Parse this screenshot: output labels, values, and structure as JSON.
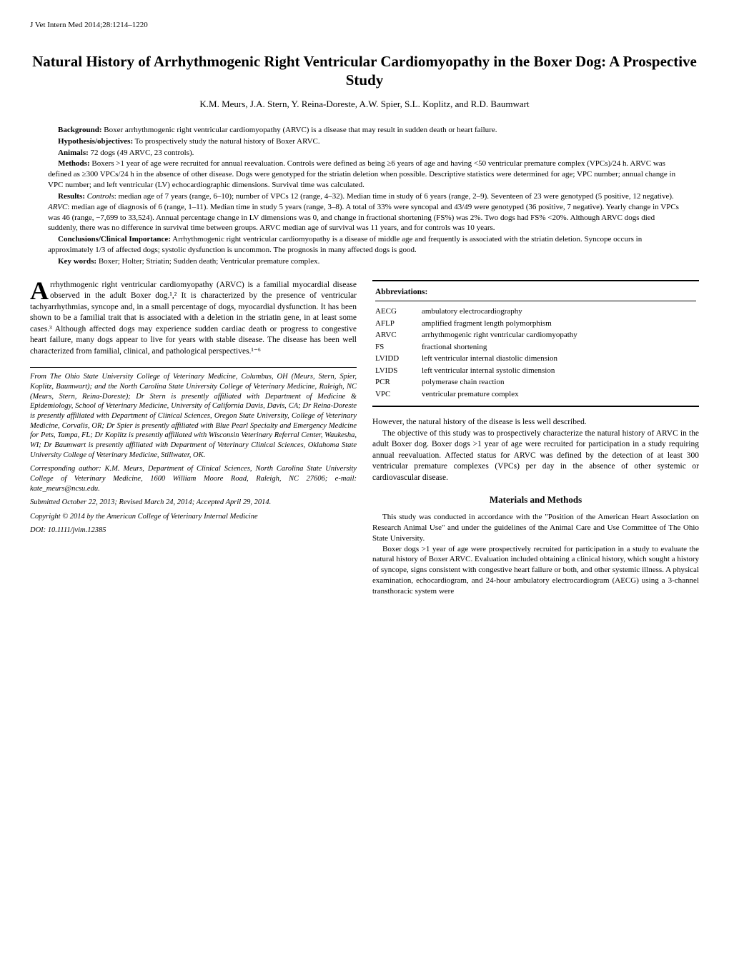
{
  "running_head": "J Vet Intern Med 2014;28:1214–1220",
  "title": "Natural History of Arrhythmogenic Right Ventricular Cardiomyopathy in the Boxer Dog: A Prospective Study",
  "authors": "K.M. Meurs, J.A. Stern, Y. Reina-Doreste, A.W. Spier, S.L. Koplitz, and R.D. Baumwart",
  "abstract": {
    "background_label": "Background:",
    "background": " Boxer arrhythmogenic right ventricular cardiomyopathy (ARVC) is a disease that may result in sudden death or heart failure.",
    "hypothesis_label": "Hypothesis/objectives:",
    "hypothesis": " To prospectively study the natural history of Boxer ARVC.",
    "animals_label": "Animals:",
    "animals": " 72 dogs (49 ARVC, 23 controls).",
    "methods_label": "Methods:",
    "methods": " Boxers >1 year of age were recruited for annual reevaluation. Controls were defined as being ≥6 years of age and having <50 ventricular premature complex (VPCs)/24 h. ARVC was defined as ≥300 VPCs/24 h in the absence of other disease. Dogs were genotyped for the striatin deletion when possible. Descriptive statistics were determined for age; VPC number; annual change in VPC number; and left ventricular (LV) echocardiographic dimensions. Survival time was calculated.",
    "results_label": "Results:",
    "results_controls_em": "Controls",
    "results_controls": ": median age of 7 years (range, 6–10); number of VPCs 12 (range, 4–32). Median time in study of 6 years (range, 2–9). Seventeen of 23 were genotyped (5 positive, 12 negative).",
    "results_arvc_em": "ARVC",
    "results_arvc": ": median age of diagnosis of 6 (range, 1–11). Median time in study 5 years (range, 3–8). A total of 33% were syncopal and 43/49 were genotyped (36 positive, 7 negative). Yearly change in VPCs was 46 (range, −7,699 to 33,524). Annual percentage change in LV dimensions was 0, and change in fractional shortening (FS%) was 2%. Two dogs had FS% <20%. Although ARVC dogs died suddenly, there was no difference in survival time between groups. ARVC median age of survival was 11 years, and for controls was 10 years.",
    "conclusions_label": "Conclusions/Clinical Importance:",
    "conclusions": " Arrhythmogenic right ventricular cardiomyopathy is a disease of middle age and frequently is associated with the striatin deletion. Syncope occurs in approximately 1/3 of affected dogs; systolic dysfunction is uncommon. The prognosis in many affected dogs is good.",
    "keywords_label": "Key words:",
    "keywords": " Boxer; Holter; Striatin; Sudden death; Ventricular premature complex."
  },
  "left_column": {
    "dropcap": "A",
    "intro": "rrhythmogenic right ventricular cardiomyopathy (ARVC) is a familial myocardial disease observed in the adult Boxer dog.¹,² It is characterized by the presence of ventricular tachyarrhythmias, syncope and, in a small percentage of dogs, myocardial dysfunction. It has been shown to be a familial trait that is associated with a deletion in the striatin gene, in at least some cases.³ Although affected dogs may experience sudden cardiac death or progress to congestive heart failure, many dogs appear to live for years with stable disease. The disease has been well characterized from familial, clinical, and pathological perspectives.¹⁻⁶",
    "footnote_affiliation": "From The Ohio State University College of Veterinary Medicine, Columbus, OH (Meurs, Stern, Spier, Koplitz, Baumwart); and the North Carolina State University College of Veterinary Medicine, Raleigh, NC (Meurs, Stern, Reina-Doreste); Dr Stern is presently affiliated with Department of Medicine & Epidemiology, School of Veterinary Medicine, University of California Davis, Davis, CA; Dr Reina-Doreste is presently affiliated with Department of Clinical Sciences, Oregon State University, College of Veterinary Medicine, Corvalis, OR; Dr Spier is presently affiliated with Blue Pearl Specialty and Emergency Medicine for Pets, Tampa, FL; Dr Koplitz is presently affiliated with Wisconsin Veterinary Referral Center, Waukesha, WI; Dr Baumwart is presently affiliated with Department of Veterinary Clinical Sciences, Oklahoma State University College of Veterinary Medicine, Stillwater, OK.",
    "footnote_corresponding": "Corresponding author: K.M. Meurs, Department of Clinical Sciences, North Carolina State University College of Veterinary Medicine, 1600 William Moore Road, Raleigh, NC 27606; e-mail: kate_meurs@ncsu.edu.",
    "footnote_submitted": "Submitted October 22, 2013; Revised March 24, 2014; Accepted April 29, 2014.",
    "footnote_copyright": "Copyright © 2014 by the American College of Veterinary Internal Medicine",
    "footnote_doi": "DOI: 10.1111/jvim.12385"
  },
  "abbreviations": {
    "title": "Abbreviations:",
    "items": [
      {
        "key": "AECG",
        "val": "ambulatory electrocardiography"
      },
      {
        "key": "AFLP",
        "val": "amplified fragment length polymorphism"
      },
      {
        "key": "ARVC",
        "val": "arrhythmogenic right ventricular cardiomyopathy"
      },
      {
        "key": "FS",
        "val": "fractional shortening"
      },
      {
        "key": "LVIDD",
        "val": "left ventricular internal diastolic dimension"
      },
      {
        "key": "LVIDS",
        "val": "left ventricular internal systolic dimension"
      },
      {
        "key": "PCR",
        "val": "polymerase chain reaction"
      },
      {
        "key": "VPC",
        "val": "ventricular premature complex"
      }
    ]
  },
  "right_column": {
    "para1": "However, the natural history of the disease is less well described.",
    "para2": "The objective of this study was to prospectively characterize the natural history of ARVC in the adult Boxer dog. Boxer dogs >1 year of age were recruited for participation in a study requiring annual reevaluation. Affected status for ARVC was defined by the detection of at least 300 ventricular premature complexes (VPCs) per day in the absence of other systemic or cardiovascular disease.",
    "methods_heading": "Materials and Methods",
    "methods_p1": "This study was conducted in accordance with the \"Position of the American Heart Association on Research Animal Use\" and under the guidelines of the Animal Care and Use Committee of The Ohio State University.",
    "methods_p2": "Boxer dogs >1 year of age were prospectively recruited for participation in a study to evaluate the natural history of Boxer ARVC. Evaluation included obtaining a clinical history, which sought a history of syncope, signs consistent with congestive heart failure or both, and other systemic illness. A physical examination, echocardiogram, and 24-hour ambulatory electrocardiogram (AECG) using a 3-channel transthoracic system were"
  }
}
